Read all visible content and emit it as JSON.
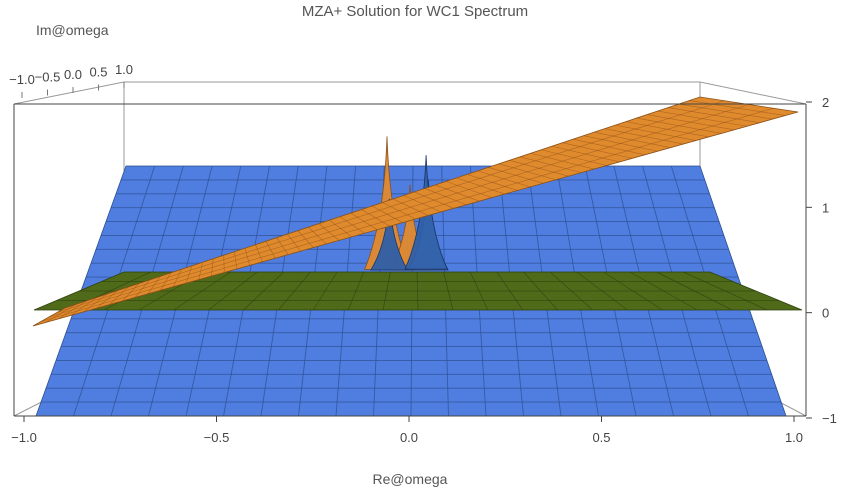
{
  "chart_data": {
    "type": "surface3d",
    "title": "MZA+ Solution for WC1 Spectrum",
    "xlabel": "Re@omega",
    "ylabel": "Im@omega",
    "zlabel": "",
    "x_ticks": [
      "−1.0",
      "−0.5",
      "0.0",
      "0.5",
      "1.0"
    ],
    "x_tick_values": [
      -1.0,
      -0.5,
      0.0,
      0.5,
      1.0
    ],
    "y_ticks": [
      "−1.0",
      "−0.5",
      "0.0",
      "0.5",
      "1.0"
    ],
    "y_tick_values": [
      -1.0,
      -0.5,
      0.0,
      0.5,
      1.0
    ],
    "z_ticks": [
      "−1",
      "0",
      "1",
      "2"
    ],
    "z_tick_values": [
      -1,
      0,
      1,
      2
    ],
    "xlim": [
      -1.0,
      1.0
    ],
    "ylim": [
      -1.0,
      1.0
    ],
    "zlim": [
      -1,
      2
    ],
    "surfaces": [
      {
        "name": "",
        "kind": "plane",
        "z": 0.0,
        "color": "#4f7ee0"
      },
      {
        "name": "",
        "kind": "plane",
        "z": 0.0,
        "color": "#4f6a18"
      },
      {
        "name": "",
        "kind": "tilted-plane",
        "z_at_x_min": 0.0,
        "z_at_x_max": 2.0,
        "color": "#e08a2e"
      }
    ],
    "peaks": [
      {
        "x": -0.1,
        "y": 0.3,
        "height": 1.4,
        "color": "#e08a2e"
      },
      {
        "x": 0.0,
        "y": 0.0,
        "height": 0.9,
        "color": "#e08a2e"
      },
      {
        "x": 0.08,
        "y": 0.0,
        "height": 0.95,
        "color": "#7fb6ec"
      },
      {
        "x": -0.09,
        "y": 0.0,
        "height": 0.75,
        "color": "#2f5fa8"
      },
      {
        "x": 0.07,
        "y": 0.4,
        "height": 1.2,
        "color": "#2f5fa8"
      }
    ],
    "grid": true,
    "box": true,
    "legend": "none"
  }
}
